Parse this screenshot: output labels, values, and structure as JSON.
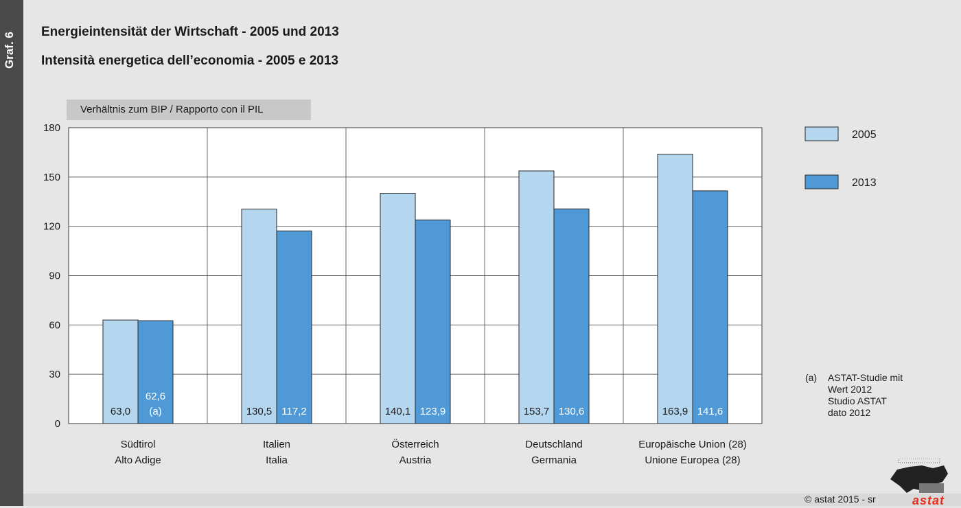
{
  "graf_label": "Graf. 6",
  "title_de": "Energieintensität der Wirtschaft - 2005 und 2013",
  "title_it": "Intensità energetica dell’economia - 2005 e 2013",
  "unit_label": "Verhältnis zum BIP / Rapporto con il PIL",
  "note": {
    "marker": "(a)",
    "lines": [
      "ASTAT-Studie mit",
      "Wert 2012",
      "Studio ASTAT",
      "dato 2012"
    ]
  },
  "copyright": "© astat 2015 - sr",
  "logo_text": "astat",
  "colors": {
    "series_2005": "#b5d6ef",
    "series_2013": "#4f9ad6",
    "background": "#e6e6e6"
  },
  "chart_data": {
    "type": "bar",
    "categories": [
      [
        "Südtirol",
        "Alto Adige"
      ],
      [
        "Italien",
        "Italia"
      ],
      [
        "Österreich",
        "Austria"
      ],
      [
        "Deutschland",
        "Germania"
      ],
      [
        "Europäische Union (28)",
        "Unione Europea (28)"
      ]
    ],
    "series": [
      {
        "name": "2005",
        "values": [
          63.0,
          130.5,
          140.1,
          153.7,
          163.9
        ],
        "labels": [
          "63,0",
          "130,5",
          "140,1",
          "153,7",
          "163,9"
        ]
      },
      {
        "name": "2013",
        "values": [
          62.6,
          117.2,
          123.9,
          130.6,
          141.6
        ],
        "labels": [
          "62,6 (a)",
          "117,2",
          "123,9",
          "130,6",
          "141,6"
        ]
      }
    ],
    "ylim": [
      0,
      180
    ],
    "yticks": [
      0,
      30,
      60,
      90,
      120,
      150,
      180
    ],
    "grid": true,
    "legend_position": "right"
  }
}
